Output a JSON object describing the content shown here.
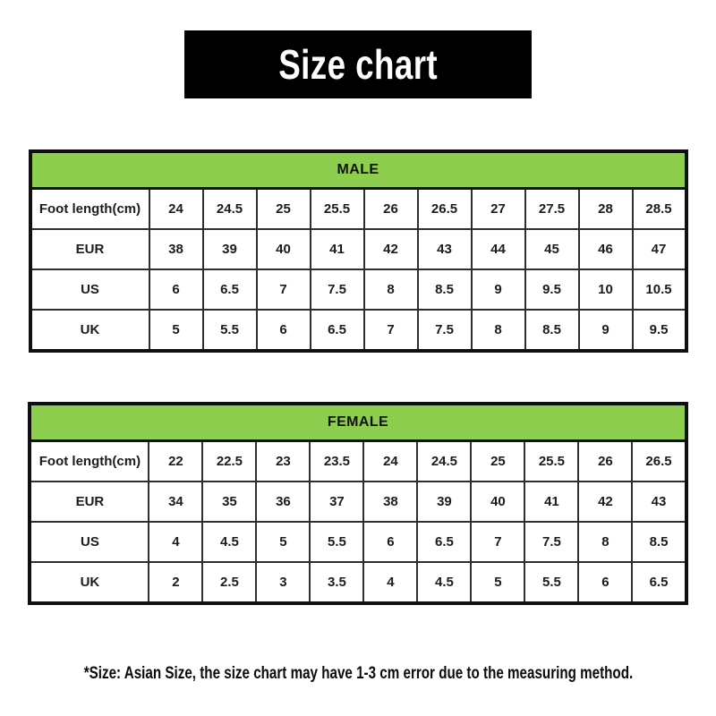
{
  "banner": {
    "title": "Size chart",
    "background_color": "#000000",
    "text_color": "#ffffff"
  },
  "colors": {
    "header_green": "#8DCE4E",
    "table_border": "#0f0f0f",
    "cell_text": "#1c1c1c"
  },
  "chart_data": [
    {
      "type": "table",
      "title": "MALE",
      "rows": [
        {
          "label": "Foot length(cm)",
          "values": [
            "24",
            "24.5",
            "25",
            "25.5",
            "26",
            "26.5",
            "27",
            "27.5",
            "28",
            "28.5"
          ]
        },
        {
          "label": "EUR",
          "values": [
            "38",
            "39",
            "40",
            "41",
            "42",
            "43",
            "44",
            "45",
            "46",
            "47"
          ]
        },
        {
          "label": "US",
          "values": [
            "6",
            "6.5",
            "7",
            "7.5",
            "8",
            "8.5",
            "9",
            "9.5",
            "10",
            "10.5"
          ]
        },
        {
          "label": "UK",
          "values": [
            "5",
            "5.5",
            "6",
            "6.5",
            "7",
            "7.5",
            "8",
            "8.5",
            "9",
            "9.5"
          ]
        }
      ]
    },
    {
      "type": "table",
      "title": "FEMALE",
      "rows": [
        {
          "label": "Foot length(cm)",
          "values": [
            "22",
            "22.5",
            "23",
            "23.5",
            "24",
            "24.5",
            "25",
            "25.5",
            "26",
            "26.5"
          ]
        },
        {
          "label": "EUR",
          "values": [
            "34",
            "35",
            "36",
            "37",
            "38",
            "39",
            "40",
            "41",
            "42",
            "43"
          ]
        },
        {
          "label": "US",
          "values": [
            "4",
            "4.5",
            "5",
            "5.5",
            "6",
            "6.5",
            "7",
            "7.5",
            "8",
            "8.5"
          ]
        },
        {
          "label": "UK",
          "values": [
            "2",
            "2.5",
            "3",
            "3.5",
            "4",
            "4.5",
            "5",
            "5.5",
            "6",
            "6.5"
          ]
        }
      ]
    }
  ],
  "footnote": "*Size: Asian Size, the size chart may have 1-3 cm error due to the measuring method."
}
